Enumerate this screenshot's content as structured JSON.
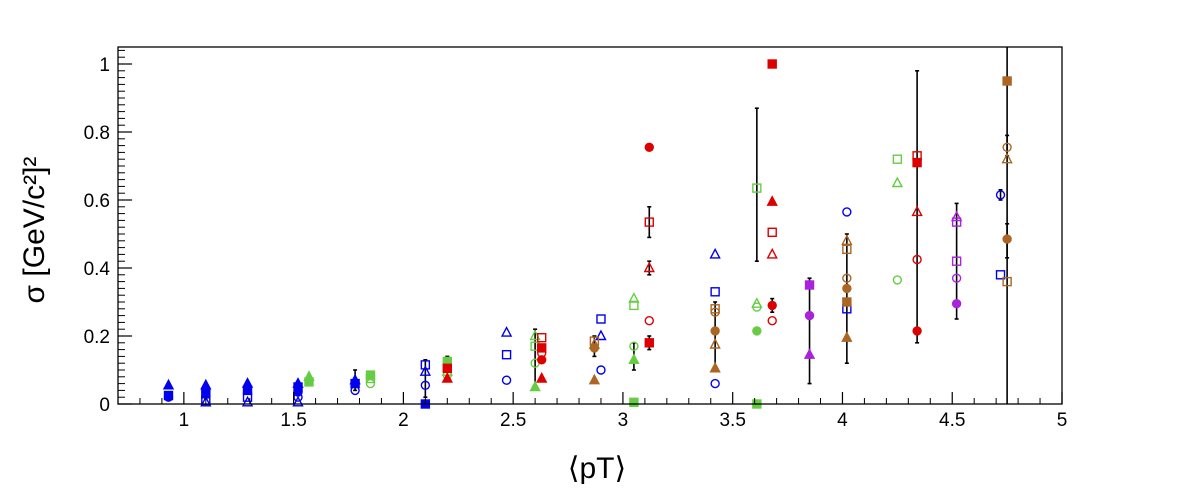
{
  "chart_data": {
    "type": "scatter",
    "title": "",
    "xlabel": "⟨pT⟩",
    "ylabel": "σ [GeV/c²]²",
    "xlim": [
      0.7,
      5.0
    ],
    "ylim": [
      0,
      1.05
    ],
    "xticks": [
      "1",
      "1.5",
      "2",
      "2.5",
      "3",
      "3.5",
      "4",
      "4.5",
      "5"
    ],
    "yticks": [
      "0",
      "0.2",
      "0.4",
      "0.6",
      "0.8",
      "1"
    ],
    "grid": false,
    "legend": "none",
    "series": [
      {
        "color": "#0000ee",
        "points": [
          {
            "x": 0.93,
            "y": 0.055,
            "m": "tf"
          },
          {
            "x": 0.93,
            "y": 0.025,
            "m": "sf"
          },
          {
            "x": 0.93,
            "y": 0.02,
            "m": "cf"
          },
          {
            "x": 1.1,
            "y": 0.055,
            "m": "tf"
          },
          {
            "x": 1.1,
            "y": 0.03,
            "m": "sf"
          },
          {
            "x": 1.1,
            "y": 0.01,
            "m": "so"
          },
          {
            "x": 1.1,
            "y": 0.005,
            "m": "to"
          },
          {
            "x": 1.29,
            "y": 0.06,
            "m": "tf"
          },
          {
            "x": 1.29,
            "y": 0.04,
            "m": "sf"
          },
          {
            "x": 1.29,
            "y": 0.02,
            "m": "so"
          },
          {
            "x": 1.29,
            "y": 0.005,
            "m": "to"
          },
          {
            "x": 1.52,
            "y": 0.06,
            "m": "tf"
          },
          {
            "x": 1.52,
            "y": 0.05,
            "m": "sf"
          },
          {
            "x": 1.52,
            "y": 0.035,
            "m": "cf"
          },
          {
            "x": 1.52,
            "y": 0.02,
            "m": "co"
          },
          {
            "x": 1.52,
            "y": 0.005,
            "m": "to"
          },
          {
            "x": 1.78,
            "y": 0.07,
            "m": "tf"
          },
          {
            "x": 1.78,
            "y": 0.06,
            "m": "sf"
          },
          {
            "x": 1.78,
            "y": 0.04,
            "m": "co"
          },
          {
            "x": 2.1,
            "y": 0.115,
            "m": "so"
          },
          {
            "x": 2.1,
            "y": 0.095,
            "m": "to"
          },
          {
            "x": 2.1,
            "y": 0.055,
            "m": "co"
          },
          {
            "x": 2.1,
            "y": 0.0,
            "m": "sf"
          },
          {
            "x": 2.47,
            "y": 0.21,
            "m": "to"
          },
          {
            "x": 2.47,
            "y": 0.145,
            "m": "so"
          },
          {
            "x": 2.47,
            "y": 0.07,
            "m": "co"
          },
          {
            "x": 2.9,
            "y": 0.25,
            "m": "so"
          },
          {
            "x": 2.9,
            "y": 0.2,
            "m": "to"
          },
          {
            "x": 2.9,
            "y": 0.1,
            "m": "co"
          },
          {
            "x": 3.42,
            "y": 0.44,
            "m": "to"
          },
          {
            "x": 3.42,
            "y": 0.33,
            "m": "so"
          },
          {
            "x": 3.42,
            "y": 0.06,
            "m": "co"
          },
          {
            "x": 4.02,
            "y": 0.565,
            "m": "co"
          },
          {
            "x": 4.02,
            "y": 0.28,
            "m": "so"
          },
          {
            "x": 4.72,
            "y": 0.615,
            "m": "co"
          },
          {
            "x": 4.72,
            "y": 0.38,
            "m": "so"
          }
        ]
      },
      {
        "color": "#66cc44",
        "points": [
          {
            "x": 1.57,
            "y": 0.08,
            "m": "tf"
          },
          {
            "x": 1.57,
            "y": 0.065,
            "m": "sf"
          },
          {
            "x": 1.85,
            "y": 0.085,
            "m": "sf"
          },
          {
            "x": 1.85,
            "y": 0.075,
            "m": "so"
          },
          {
            "x": 1.85,
            "y": 0.06,
            "m": "co"
          },
          {
            "x": 2.2,
            "y": 0.125,
            "m": "sf"
          },
          {
            "x": 2.2,
            "y": 0.11,
            "m": "so"
          },
          {
            "x": 2.2,
            "y": 0.095,
            "m": "to"
          },
          {
            "x": 2.2,
            "y": 0.085,
            "m": "co"
          },
          {
            "x": 2.6,
            "y": 0.2,
            "m": "to"
          },
          {
            "x": 2.6,
            "y": 0.17,
            "m": "so"
          },
          {
            "x": 2.6,
            "y": 0.12,
            "m": "co"
          },
          {
            "x": 2.6,
            "y": 0.05,
            "m": "tf"
          },
          {
            "x": 3.05,
            "y": 0.31,
            "m": "to"
          },
          {
            "x": 3.05,
            "y": 0.29,
            "m": "so"
          },
          {
            "x": 3.05,
            "y": 0.17,
            "m": "co"
          },
          {
            "x": 3.05,
            "y": 0.13,
            "m": "tf"
          },
          {
            "x": 3.05,
            "y": 0.005,
            "m": "sf"
          },
          {
            "x": 3.61,
            "y": 0.635,
            "m": "so"
          },
          {
            "x": 3.61,
            "y": 0.295,
            "m": "to"
          },
          {
            "x": 3.61,
            "y": 0.285,
            "m": "co"
          },
          {
            "x": 3.61,
            "y": 0.215,
            "m": "cf"
          },
          {
            "x": 3.61,
            "y": 0.0,
            "m": "sf"
          },
          {
            "x": 4.25,
            "y": 0.72,
            "m": "so"
          },
          {
            "x": 4.25,
            "y": 0.65,
            "m": "to"
          },
          {
            "x": 4.25,
            "y": 0.365,
            "m": "co"
          }
        ]
      },
      {
        "color": "#dd0000",
        "points": [
          {
            "x": 2.2,
            "y": 0.105,
            "m": "sf"
          },
          {
            "x": 2.2,
            "y": 0.075,
            "m": "tf"
          },
          {
            "x": 2.63,
            "y": 0.195,
            "m": "so"
          },
          {
            "x": 2.63,
            "y": 0.165,
            "m": "sf"
          },
          {
            "x": 2.63,
            "y": 0.15,
            "m": "co"
          },
          {
            "x": 2.63,
            "y": 0.13,
            "m": "cf"
          },
          {
            "x": 2.63,
            "y": 0.075,
            "m": "tf"
          },
          {
            "x": 3.12,
            "y": 0.755,
            "m": "cf"
          },
          {
            "x": 3.12,
            "y": 0.535,
            "m": "so"
          },
          {
            "x": 3.12,
            "y": 0.4,
            "m": "to"
          },
          {
            "x": 3.12,
            "y": 0.245,
            "m": "co"
          },
          {
            "x": 3.12,
            "y": 0.18,
            "m": "sf"
          },
          {
            "x": 3.68,
            "y": 1.0,
            "m": "sf"
          },
          {
            "x": 3.68,
            "y": 0.595,
            "m": "tf"
          },
          {
            "x": 3.68,
            "y": 0.505,
            "m": "so"
          },
          {
            "x": 3.68,
            "y": 0.44,
            "m": "to"
          },
          {
            "x": 3.68,
            "y": 0.29,
            "m": "cf"
          },
          {
            "x": 3.68,
            "y": 0.245,
            "m": "co"
          },
          {
            "x": 4.34,
            "y": 0.73,
            "m": "so"
          },
          {
            "x": 4.34,
            "y": 0.71,
            "m": "sf"
          },
          {
            "x": 4.34,
            "y": 0.565,
            "m": "to"
          },
          {
            "x": 4.34,
            "y": 0.425,
            "m": "co"
          },
          {
            "x": 4.34,
            "y": 0.215,
            "m": "cf"
          }
        ]
      },
      {
        "color": "#aa6622",
        "points": [
          {
            "x": 2.87,
            "y": 0.185,
            "m": "so"
          },
          {
            "x": 2.87,
            "y": 0.175,
            "m": "to"
          },
          {
            "x": 2.87,
            "y": 0.165,
            "m": "cf"
          },
          {
            "x": 2.87,
            "y": 0.07,
            "m": "tf"
          },
          {
            "x": 3.42,
            "y": 0.28,
            "m": "so"
          },
          {
            "x": 3.42,
            "y": 0.27,
            "m": "co"
          },
          {
            "x": 3.42,
            "y": 0.215,
            "m": "cf"
          },
          {
            "x": 3.42,
            "y": 0.175,
            "m": "to"
          },
          {
            "x": 3.42,
            "y": 0.105,
            "m": "tf"
          },
          {
            "x": 4.02,
            "y": 0.48,
            "m": "to"
          },
          {
            "x": 4.02,
            "y": 0.455,
            "m": "so"
          },
          {
            "x": 4.02,
            "y": 0.37,
            "m": "co"
          },
          {
            "x": 4.02,
            "y": 0.34,
            "m": "cf"
          },
          {
            "x": 4.02,
            "y": 0.3,
            "m": "sf"
          },
          {
            "x": 4.02,
            "y": 0.195,
            "m": "tf"
          },
          {
            "x": 4.75,
            "y": 0.95,
            "m": "sf"
          },
          {
            "x": 4.75,
            "y": 0.755,
            "m": "co"
          },
          {
            "x": 4.75,
            "y": 0.72,
            "m": "to"
          },
          {
            "x": 4.75,
            "y": 0.485,
            "m": "cf"
          },
          {
            "x": 4.75,
            "y": 0.36,
            "m": "so"
          }
        ]
      },
      {
        "color": "#aa22dd",
        "points": [
          {
            "x": 3.85,
            "y": 0.35,
            "m": "sf"
          },
          {
            "x": 3.85,
            "y": 0.26,
            "m": "cf"
          },
          {
            "x": 3.85,
            "y": 0.145,
            "m": "tf"
          },
          {
            "x": 4.52,
            "y": 0.55,
            "m": "to"
          },
          {
            "x": 4.52,
            "y": 0.535,
            "m": "so"
          },
          {
            "x": 4.52,
            "y": 0.42,
            "m": "so"
          },
          {
            "x": 4.52,
            "y": 0.37,
            "m": "co"
          },
          {
            "x": 4.52,
            "y": 0.295,
            "m": "cf"
          }
        ]
      }
    ],
    "error_bars": [
      {
        "x": 1.78,
        "lo": 0.04,
        "hi": 0.1
      },
      {
        "x": 2.1,
        "lo": 0.02,
        "hi": 0.13
      },
      {
        "x": 2.2,
        "lo": 0.07,
        "hi": 0.14
      },
      {
        "x": 2.6,
        "lo": 0.05,
        "hi": 0.22
      },
      {
        "x": 2.87,
        "lo": 0.14,
        "hi": 0.2
      },
      {
        "x": 3.05,
        "lo": 0.1,
        "hi": 0.18
      },
      {
        "x": 3.12,
        "lo": 0.38,
        "hi": 0.42
      },
      {
        "x": 3.12,
        "lo": 0.49,
        "hi": 0.58
      },
      {
        "x": 3.12,
        "lo": 0.16,
        "hi": 0.2
      },
      {
        "x": 3.42,
        "lo": 0.1,
        "hi": 0.3
      },
      {
        "x": 3.61,
        "lo": 0.42,
        "hi": 0.87
      },
      {
        "x": 3.68,
        "lo": 0.27,
        "hi": 0.31
      },
      {
        "x": 3.85,
        "lo": 0.06,
        "hi": 0.37
      },
      {
        "x": 4.02,
        "lo": 0.12,
        "hi": 0.5
      },
      {
        "x": 4.34,
        "lo": 0.18,
        "hi": 0.98
      },
      {
        "x": 4.52,
        "lo": 0.25,
        "hi": 0.59
      },
      {
        "x": 4.72,
        "lo": 0.6,
        "hi": 0.63
      },
      {
        "x": 4.75,
        "lo": 0.0,
        "hi": 1.05
      },
      {
        "x": 4.75,
        "lo": 0.43,
        "hi": 0.53
      },
      {
        "x": 4.75,
        "lo": 0.73,
        "hi": 0.79
      }
    ]
  }
}
